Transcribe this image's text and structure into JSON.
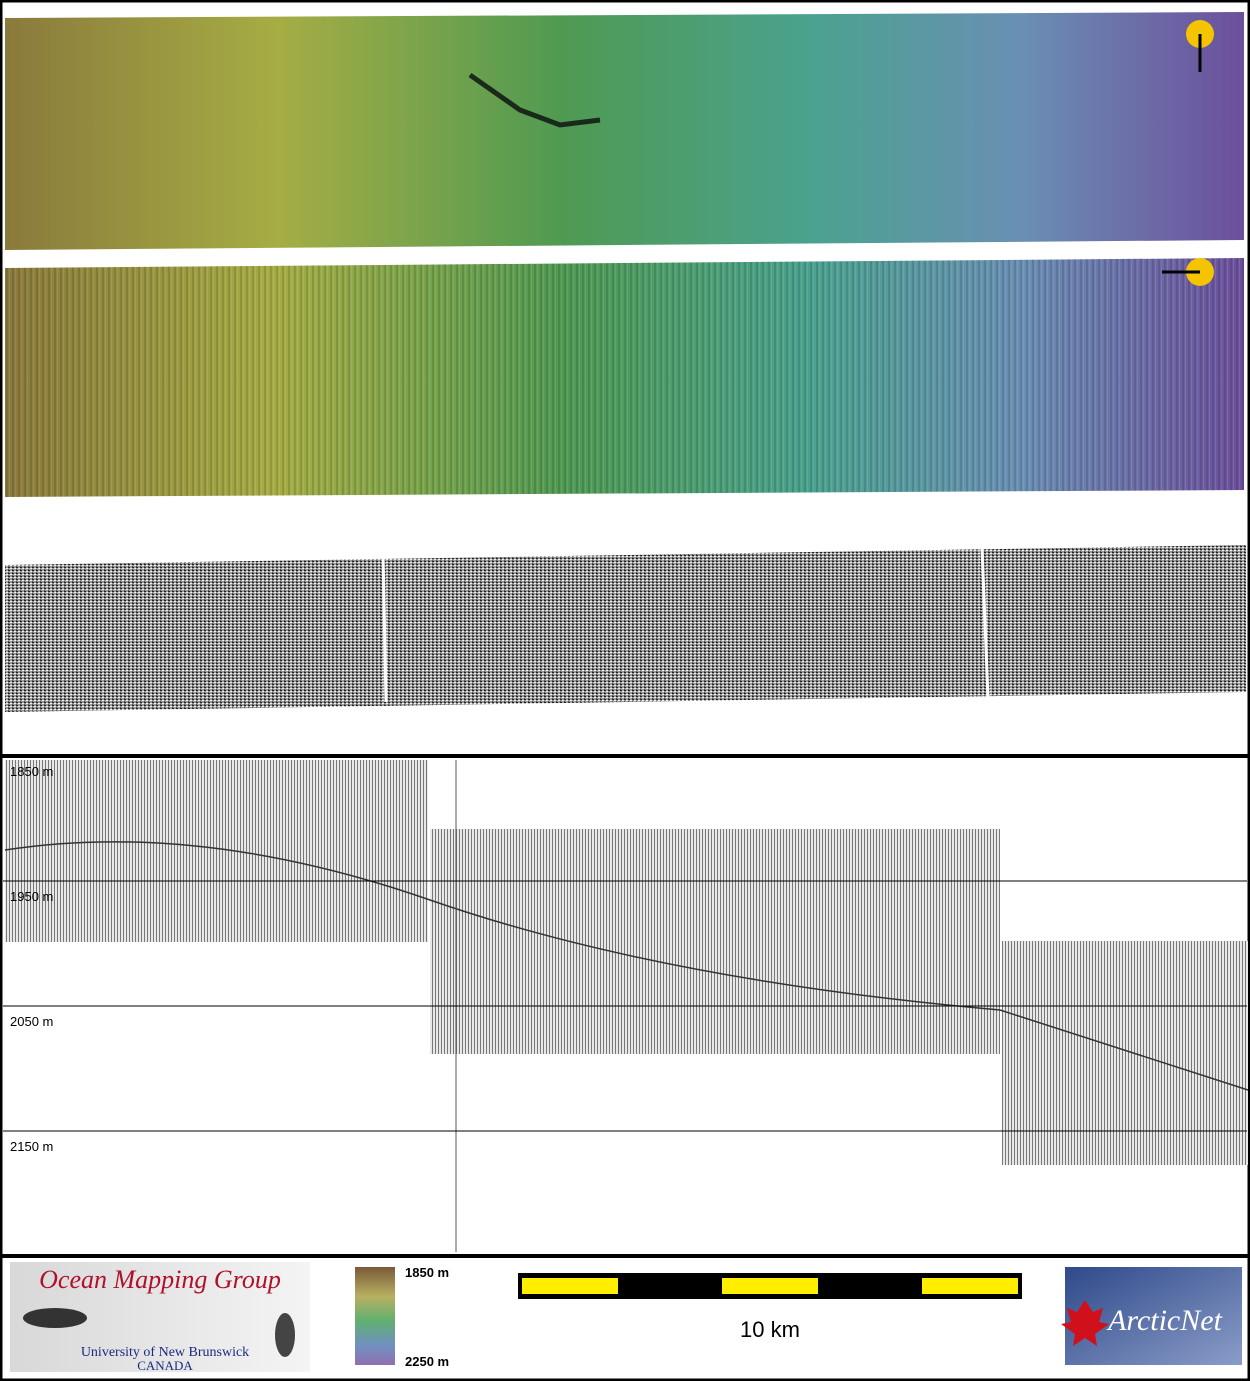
{
  "depth_profile": {
    "labels": [
      "1850 m",
      "1950 m",
      "2050 m",
      "2150 m"
    ]
  },
  "footer": {
    "logo": {
      "title": "Ocean Mapping Group",
      "subtitle": "University of New Brunswick",
      "country": "CANADA"
    },
    "colorbar": {
      "top": "1850 m",
      "bottom": "2250 m"
    },
    "scale": "10 km",
    "partner": "ArcticNet"
  }
}
